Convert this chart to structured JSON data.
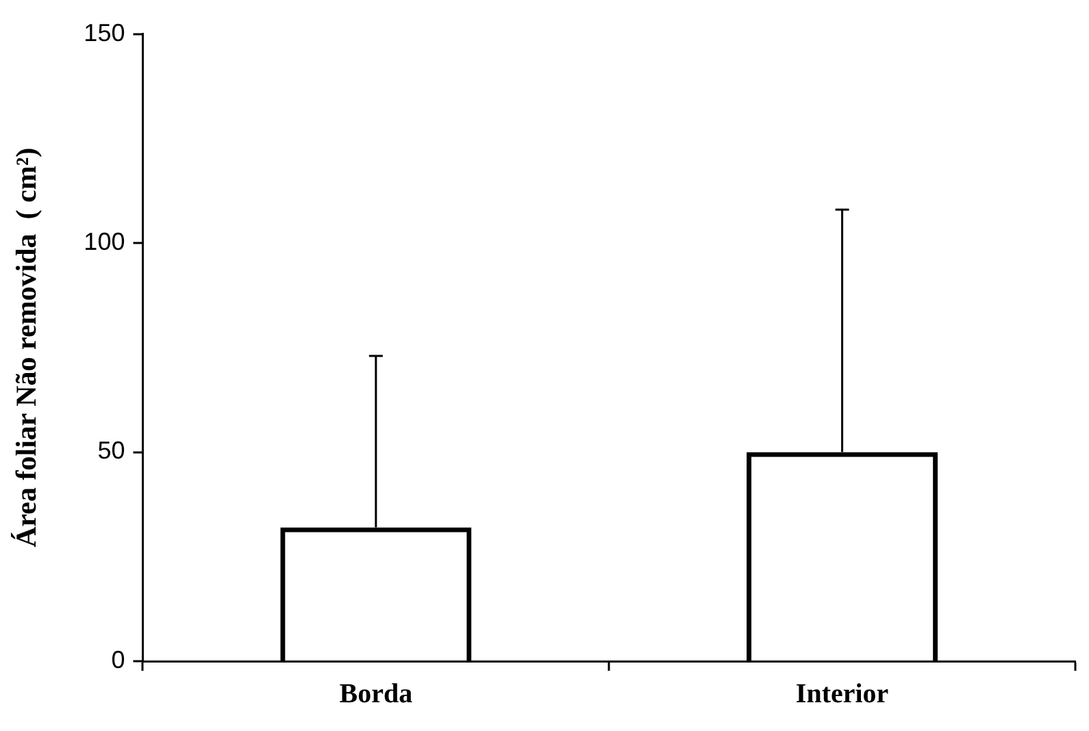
{
  "chart_data": {
    "type": "bar",
    "ylabel": "Área foliar Não removida  ( cm²)",
    "categories": [
      "Borda",
      "Interior"
    ],
    "values": [
      32,
      50
    ],
    "errors": [
      [
        32,
        73
      ],
      [
        50,
        108
      ]
    ],
    "color": "#000000",
    "ylim": [
      0,
      150
    ],
    "yticks": [
      0,
      50,
      100,
      150
    ],
    "grid": false,
    "legend": false
  }
}
